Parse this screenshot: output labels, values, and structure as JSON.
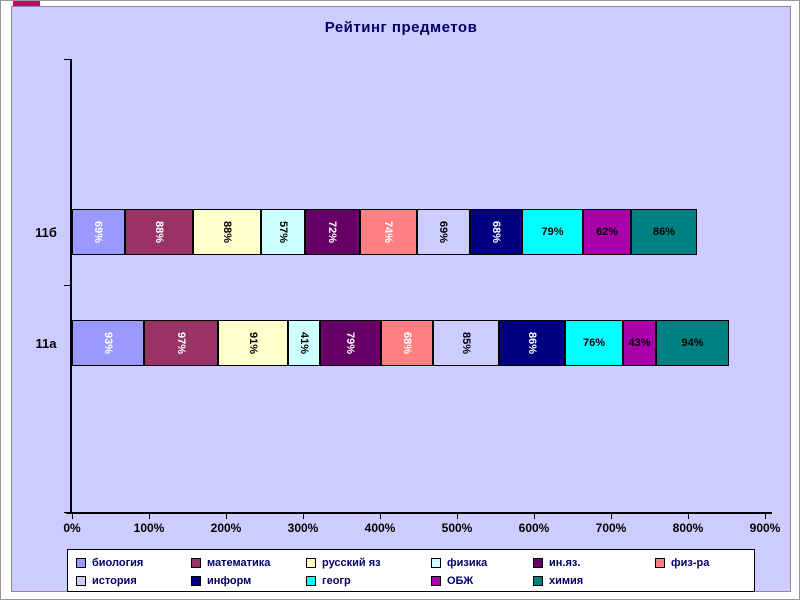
{
  "slide": {
    "accent_color": "#cc0066",
    "background_color": "#ffffff",
    "chart_background_color": "#ccccff"
  },
  "chart_data": {
    "type": "bar",
    "orientation": "horizontal-stacked",
    "title": "Рейтинг предметов",
    "categories": [
      "11б",
      "11а"
    ],
    "series": [
      {
        "name": "биология",
        "color": "#9999ff",
        "label_color": "#ffffff",
        "rotated": true,
        "values": [
          69,
          93
        ]
      },
      {
        "name": "математика",
        "color": "#993366",
        "label_color": "#ffffff",
        "rotated": true,
        "values": [
          88,
          97
        ]
      },
      {
        "name": "русский яз",
        "color": "#ffffcc",
        "label_color": "#000000",
        "rotated": true,
        "values": [
          88,
          91
        ]
      },
      {
        "name": "физика",
        "color": "#ccffff",
        "label_color": "#000000",
        "rotated": true,
        "values": [
          57,
          41
        ]
      },
      {
        "name": "ин.яз.",
        "color": "#660066",
        "label_color": "#ffffff",
        "rotated": true,
        "values": [
          72,
          79
        ]
      },
      {
        "name": "физ-ра",
        "color": "#ff8080",
        "label_color": "#ffffff",
        "rotated": true,
        "values": [
          74,
          68
        ]
      },
      {
        "name": "история",
        "color": "#ccccff",
        "label_color": "#000000",
        "rotated": true,
        "values": [
          69,
          85
        ]
      },
      {
        "name": "информ",
        "color": "#000080",
        "label_color": "#ffffff",
        "rotated": true,
        "values": [
          68,
          86
        ]
      },
      {
        "name": "геогр",
        "color": "#00ffff",
        "label_color": "#000000",
        "rotated": false,
        "values": [
          79,
          76
        ]
      },
      {
        "name": "ОБЖ",
        "color": "#aa00aa",
        "label_color": "#000000",
        "rotated": false,
        "values": [
          62,
          43
        ]
      },
      {
        "name": "химия",
        "color": "#008080",
        "label_color": "#000000",
        "rotated": false,
        "values": [
          86,
          94
        ]
      }
    ],
    "x_ticks": [
      "0%",
      "100%",
      "200%",
      "300%",
      "400%",
      "500%",
      "600%",
      "700%",
      "800%",
      "900%"
    ],
    "x_max": 900,
    "value_suffix": "%",
    "grid": false,
    "legend_position": "bottom",
    "legend_rows": [
      [
        "биология",
        "математика",
        "русский яз",
        "физика",
        "ин.яз.",
        "физ-ра"
      ],
      [
        "история",
        "информ",
        "геогр",
        "ОБЖ",
        "химия"
      ]
    ]
  }
}
